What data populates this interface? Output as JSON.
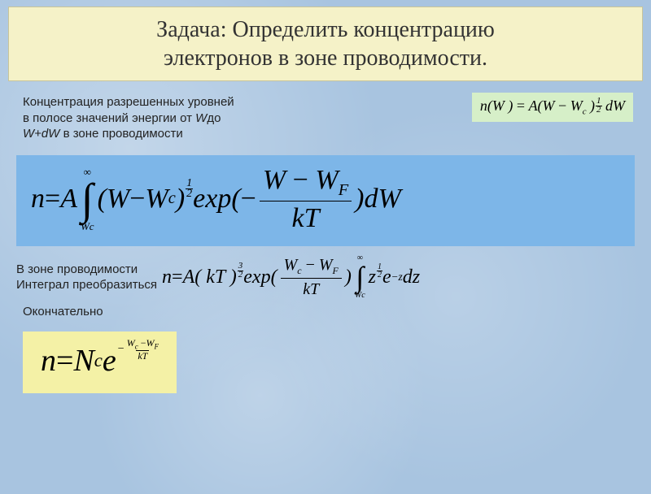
{
  "title": {
    "line1": "Задача: Определить концентрацию",
    "line2": "электронов в зоне проводимости."
  },
  "text1": {
    "l1": "Концентрация разрешенных уровней",
    "l2_a": "в полосе значений энергии от ",
    "l2_w": "W",
    "l2_b": "до",
    "l3_a": "W+dW",
    "l3_b": "  в зоне проводимости"
  },
  "eq_small": {
    "lhs": "n(W )",
    "eq": " = ",
    "A": "A(W ",
    "minus": "− ",
    "Wc": "W",
    "Wc_sub": "c",
    "close": " )",
    "exp_num": "1",
    "exp_den": "2",
    "dW": " dW"
  },
  "eq_main": {
    "n": "n",
    "eq": " = ",
    "A": "A",
    "int_top": "∞",
    "int_sym": "∫",
    "int_bot": "Wc",
    "open": "(W ",
    "minus": "− ",
    "Wc": "W",
    "Wc_sub": "c",
    "close": " )",
    "exp_num": "1",
    "exp_den": "2",
    "space": " ",
    "expfn": "exp(",
    "neg": "−",
    "frac_num_a": "W ",
    "frac_num_m": "− ",
    "frac_num_b": "W",
    "frac_num_bsub": "F",
    "frac_den": "kT",
    "close2": ")dW"
  },
  "text2": "В зоне проводимости",
  "text3": "Интеграл преобразиться",
  "eq3": {
    "n": "n",
    "eq": " = ",
    "A": "A( kT )",
    "p_num": "3",
    "p_den": "2",
    "sp": " ",
    "expfn": "exp(",
    "f1_num_a": "W",
    "f1_num_asub": "c",
    "f1_num_m": " − ",
    "f1_num_b": "W",
    "f1_num_bsub": "F",
    "f1_den": "kT",
    "close1": " )",
    "int_top": "∞",
    "int_sym": "∫",
    "int_bot": "Wc",
    "z": "z",
    "zp_num": "1",
    "zp_den": "2",
    "e": "e",
    "esup": "−z",
    "dz": " dz"
  },
  "text4": "Окончательно",
  "eq_final": {
    "n": "n",
    "eq": " = ",
    "Nc": "N",
    "Nc_sub": "c",
    "e": "e",
    "minus": "−",
    "ef_num_a": "W",
    "ef_num_asub": "c",
    "ef_num_m": " −",
    "ef_num_b": "W",
    "ef_num_bsub": "F",
    "ef_den": "kT"
  },
  "colors": {
    "title_bg": "#f5f2c8",
    "eq_small_bg": "#d6efc8",
    "eq_main_bg": "#7db6e8",
    "eq_final_bg": "#f4f1a6",
    "page_bg": "#a8c4e0"
  }
}
